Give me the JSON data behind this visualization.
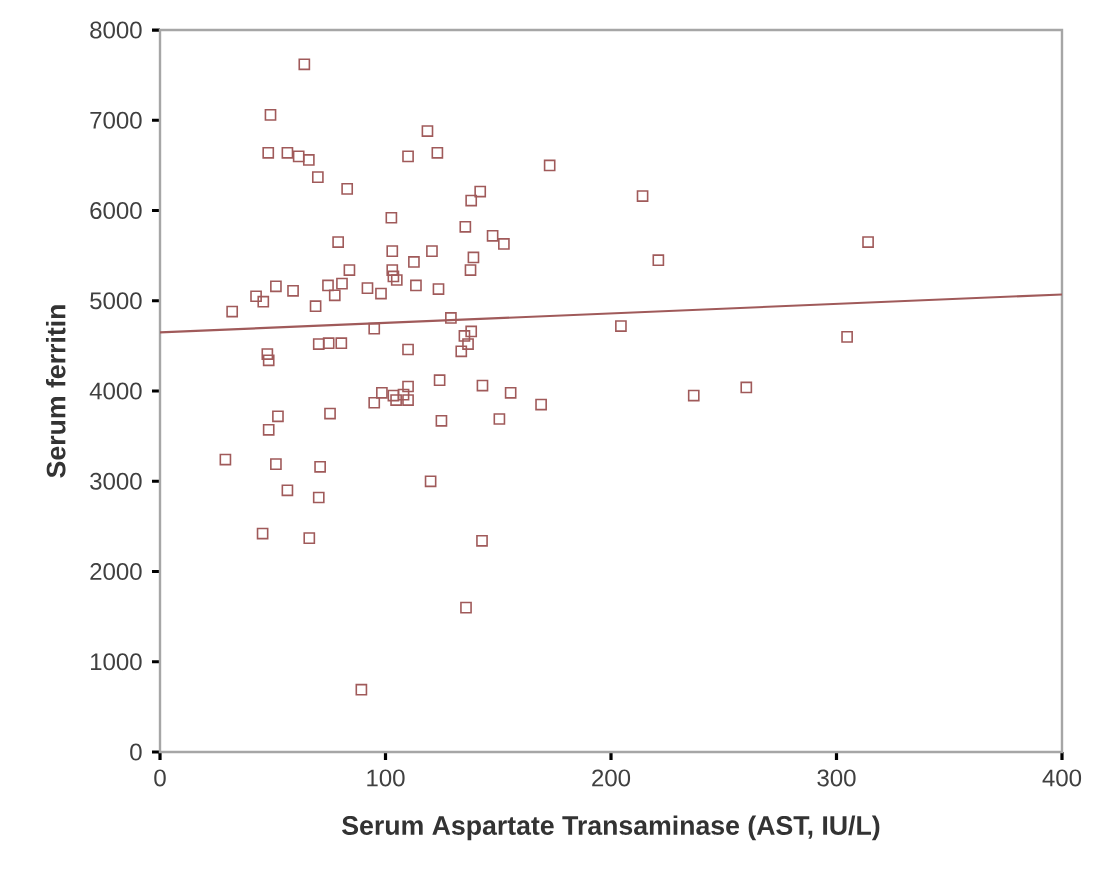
{
  "chart_data": {
    "type": "scatter",
    "xlabel": "Serum Aspartate Transaminase (AST, IU/L)",
    "ylabel": "Serum ferritin",
    "xlim": [
      0,
      400
    ],
    "xticks": [
      0,
      100,
      200,
      300,
      400
    ],
    "ylim": [
      0,
      8000
    ],
    "yticks": [
      0,
      1000,
      2000,
      3000,
      4000,
      5000,
      6000,
      7000,
      8000
    ],
    "marker": "square",
    "series": [
      {
        "color": "#a05a5a",
        "x": [
          64,
          49,
          48,
          56.5,
          61.5,
          66,
          70,
          83,
          102.6,
          79,
          103,
          84,
          103,
          51.4,
          59,
          42.6,
          45.8,
          74.5,
          80.7,
          77.5,
          92,
          98,
          69,
          32,
          95,
          70.4,
          74.8,
          80.4,
          47.6,
          48.2,
          118.6,
          110,
          123,
          142,
          138,
          135.4,
          147.5,
          152.5,
          120.6,
          112.6,
          139,
          137.7,
          103.5,
          105,
          113.5,
          123.5,
          129,
          138,
          135,
          136.6,
          133.6,
          110,
          124,
          143,
          155.5,
          98.4,
          103.5,
          108,
          110,
          95,
          52.3,
          48.2,
          75.4,
          29,
          51.4,
          71,
          56.5,
          70.4,
          45.5,
          66.2,
          89.3,
          104.7,
          110,
          124.8,
          150.5,
          120,
          142.8,
          135.7,
          172.8,
          214,
          221,
          314,
          204.4,
          304.7,
          169,
          236.7,
          260
        ],
        "values": [
          7620,
          7060,
          6640,
          6640,
          6600,
          6560,
          6370,
          6240,
          5920,
          5650,
          5550,
          5340,
          5340,
          5160,
          5110,
          5050,
          4990,
          5170,
          5190,
          5060,
          5140,
          5080,
          4940,
          4880,
          4690,
          4520,
          4530,
          4530,
          4410,
          4340,
          6880,
          6600,
          6640,
          6210,
          6110,
          5820,
          5720,
          5630,
          5550,
          5430,
          5480,
          5340,
          5270,
          5230,
          5170,
          5130,
          4810,
          4660,
          4610,
          4520,
          4440,
          4460,
          4120,
          4060,
          3980,
          3980,
          3950,
          3960,
          4050,
          3870,
          3720,
          3570,
          3750,
          3240,
          3190,
          3160,
          2900,
          2820,
          2420,
          2370,
          690,
          3900,
          3900,
          3670,
          3690,
          3000,
          2340,
          1600,
          6500,
          6160,
          5450,
          5650,
          4720,
          4600,
          3850,
          3950,
          4040
        ]
      },
      {
        "type": "line",
        "color": "#a05a5a",
        "x": [
          0,
          400
        ],
        "values": [
          4650,
          5070
        ],
        "marker": "none",
        "line_style": "solid"
      }
    ]
  }
}
